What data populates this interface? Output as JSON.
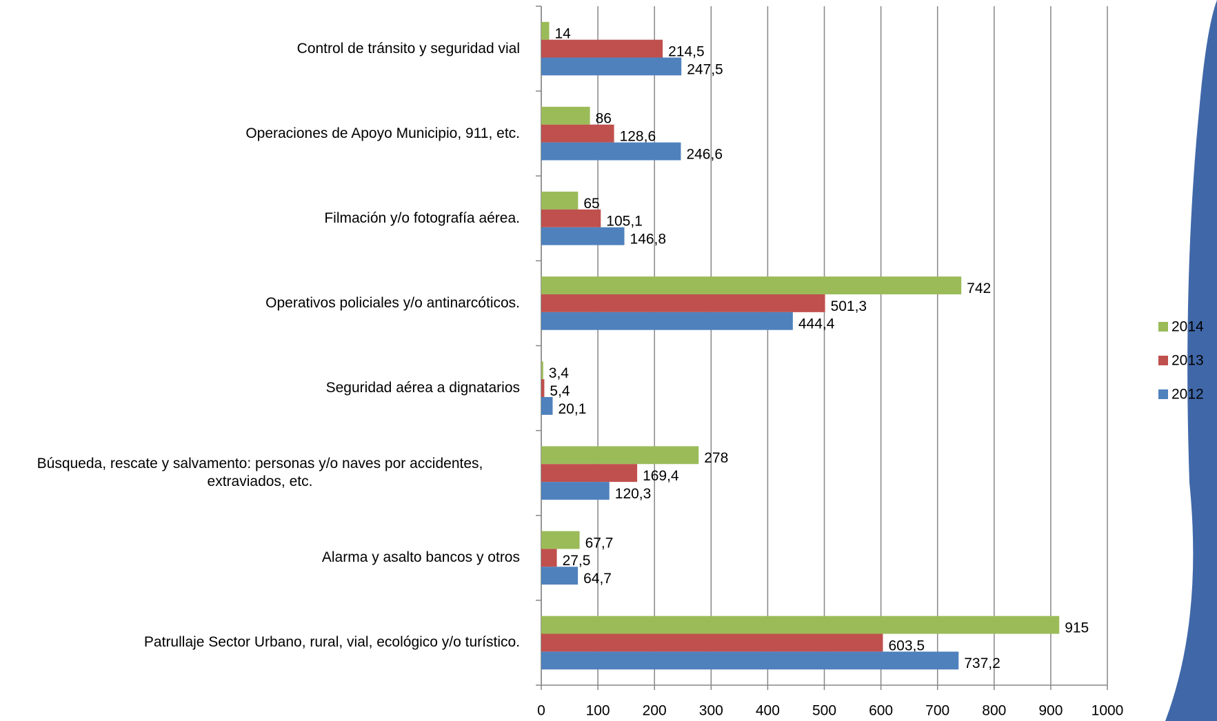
{
  "chart_data": {
    "type": "bar",
    "orientation": "horizontal",
    "categories": [
      "Control de tránsito y seguridad vial",
      "Operaciones de Apoyo Municipio, 911, etc.",
      "Filmación y/o fotografía aérea.",
      "Operativos policiales y/o antinarcóticos.",
      "Seguridad aérea a dignatarios",
      "Búsqueda, rescate y salvamento: personas y/o naves por accidentes, extraviados, etc.",
      "Alarma y asalto bancos y otros",
      "Patrullaje Sector Urbano, rural, vial, ecológico y/o turístico."
    ],
    "series": [
      {
        "name": "2014",
        "color": "#9bbb59",
        "values": [
          14,
          86,
          65,
          742,
          3.4,
          278,
          67.7,
          915
        ],
        "value_labels": [
          "14",
          "86",
          "65",
          "742",
          "3,4",
          "278",
          "67,7",
          "915"
        ]
      },
      {
        "name": "2013",
        "color": "#c0504d",
        "values": [
          214.5,
          128.6,
          105.1,
          501.3,
          5.4,
          169.4,
          27.5,
          603.5
        ],
        "value_labels": [
          "214,5",
          "128,6",
          "105,1",
          "501,3",
          "5,4",
          "169,4",
          "27,5",
          "603,5"
        ]
      },
      {
        "name": "2012",
        "color": "#4f81bd",
        "values": [
          247.5,
          246.6,
          146.8,
          444.4,
          20.1,
          120.3,
          64.7,
          737.2
        ],
        "value_labels": [
          "247,5",
          "246,6",
          "146,8",
          "444,4",
          "20,1",
          "120,3",
          "64,7",
          "737,2"
        ]
      }
    ],
    "xlim": [
      0,
      1000
    ],
    "xticks": [
      0,
      100,
      200,
      300,
      400,
      500,
      600,
      700,
      800,
      900,
      1000
    ],
    "grid": true,
    "legend": "right"
  }
}
